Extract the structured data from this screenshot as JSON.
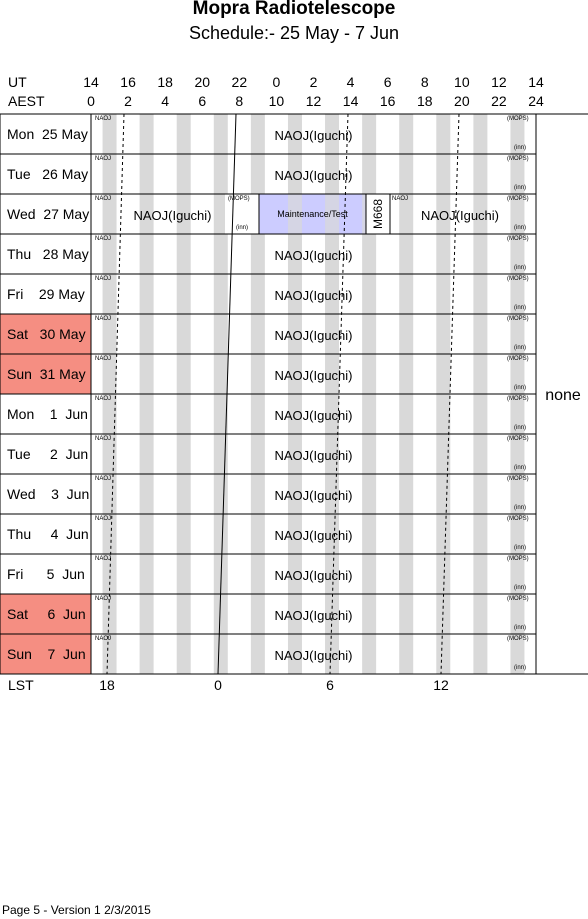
{
  "header": {
    "title": "Mopra Radiotelescope",
    "subtitle": "Schedule:- 25 May - 7  Jun"
  },
  "axes": {
    "ut_label": "UT",
    "aest_label": "AEST",
    "lst_label": "LST",
    "ut_ticks": [
      "14",
      "16",
      "18",
      "20",
      "22",
      "0",
      "2",
      "4",
      "6",
      "8",
      "10",
      "12",
      "14"
    ],
    "aest_ticks": [
      "0",
      "2",
      "4",
      "6",
      "8",
      "10",
      "12",
      "14",
      "16",
      "18",
      "20",
      "22",
      "24"
    ],
    "lst_ticks": [
      "18",
      "0",
      "6",
      "12"
    ]
  },
  "days": [
    {
      "label": "Mon  25 May",
      "weekend": false
    },
    {
      "label": "Tue   26 May",
      "weekend": false
    },
    {
      "label": "Wed  27 May",
      "weekend": false
    },
    {
      "label": "Thu   28 May",
      "weekend": false
    },
    {
      "label": "Fri    29 May",
      "weekend": false
    },
    {
      "label": "Sat   30 May",
      "weekend": true
    },
    {
      "label": "Sun  31 May",
      "weekend": true
    },
    {
      "label": "Mon    1  Jun",
      "weekend": false
    },
    {
      "label": "Tue     2  Jun",
      "weekend": false
    },
    {
      "label": "Wed    3  Jun",
      "weekend": false
    },
    {
      "label": "Thu     4  Jun",
      "weekend": false
    },
    {
      "label": "Fri      5  Jun",
      "weekend": false
    },
    {
      "label": "Sat     6  Jun",
      "weekend": true
    },
    {
      "label": "Sun    7  Jun",
      "weekend": true
    }
  ],
  "blocks": {
    "default_label": "NAOJ(Iguchi)",
    "naoj_small": "NAOJ",
    "mops_small": "(MOPS)",
    "inn_small": "(inn)",
    "wed_left_label": "NAOJ(Iguchi)",
    "wed_maint_label": "Maintenance/Test",
    "wed_m668_label": "M668",
    "wed_right_label": "NAOJ(Iguchi)"
  },
  "side_label": "none",
  "footer": "Page 5 - Version 1  2/3/2015",
  "colors": {
    "stripe": "#d9d9d9",
    "weekend": "#f58e82",
    "maintenance": "#ccccff"
  }
}
